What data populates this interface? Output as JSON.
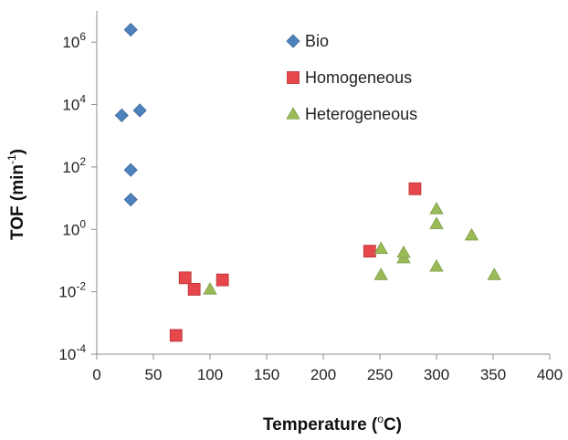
{
  "chart_data": {
    "type": "scatter",
    "title": "",
    "xlabel": {
      "main": "Temperature (",
      "sup": "o",
      "tail": "C)"
    },
    "ylabel": {
      "main": "TOF (min",
      "sup": "-1",
      "tail": ")"
    },
    "xlim": [
      0,
      400
    ],
    "ylim": [
      0.0001,
      10000000
    ],
    "yscale": "log",
    "grid": false,
    "legend_position": "top-center",
    "x_ticks": [
      {
        "value": 0,
        "label": "0"
      },
      {
        "value": 50,
        "label": "50"
      },
      {
        "value": 100,
        "label": "100"
      },
      {
        "value": 150,
        "label": "150"
      },
      {
        "value": 200,
        "label": "200"
      },
      {
        "value": 250,
        "label": "250"
      },
      {
        "value": 300,
        "label": "300"
      },
      {
        "value": 350,
        "label": "350"
      },
      {
        "value": 400,
        "label": "400"
      }
    ],
    "y_ticks": [
      {
        "value": 0.0001,
        "base": "10",
        "exp": "-4"
      },
      {
        "value": 0.01,
        "base": "10",
        "exp": "-2"
      },
      {
        "value": 1,
        "base": "10",
        "exp": "0"
      },
      {
        "value": 100,
        "base": "10",
        "exp": "2"
      },
      {
        "value": 10000,
        "base": "10",
        "exp": "4"
      },
      {
        "value": 1000000,
        "base": "10",
        "exp": "6"
      }
    ],
    "series": [
      {
        "name": "Bio",
        "marker": "diamond",
        "color": "#4f81bd",
        "points": [
          {
            "x": 30,
            "y": 2500000
          },
          {
            "x": 22,
            "y": 4500
          },
          {
            "x": 38,
            "y": 6500
          },
          {
            "x": 30,
            "y": 80
          },
          {
            "x": 30,
            "y": 9
          }
        ]
      },
      {
        "name": "Homogeneous",
        "marker": "square",
        "color": "#e5474b",
        "points": [
          {
            "x": 70,
            "y": 0.0004
          },
          {
            "x": 78,
            "y": 0.028
          },
          {
            "x": 86,
            "y": 0.012
          },
          {
            "x": 111,
            "y": 0.024
          },
          {
            "x": 241,
            "y": 0.2
          },
          {
            "x": 281,
            "y": 20
          }
        ]
      },
      {
        "name": "Heterogeneous",
        "marker": "triangle",
        "color": "#9bbb59",
        "points": [
          {
            "x": 100,
            "y": 0.012
          },
          {
            "x": 251,
            "y": 0.24
          },
          {
            "x": 251,
            "y": 0.035
          },
          {
            "x": 271,
            "y": 0.12
          },
          {
            "x": 271,
            "y": 0.18
          },
          {
            "x": 300,
            "y": 4.5
          },
          {
            "x": 300,
            "y": 1.5
          },
          {
            "x": 300,
            "y": 0.065
          },
          {
            "x": 331,
            "y": 0.65
          },
          {
            "x": 351,
            "y": 0.035
          }
        ]
      }
    ]
  }
}
